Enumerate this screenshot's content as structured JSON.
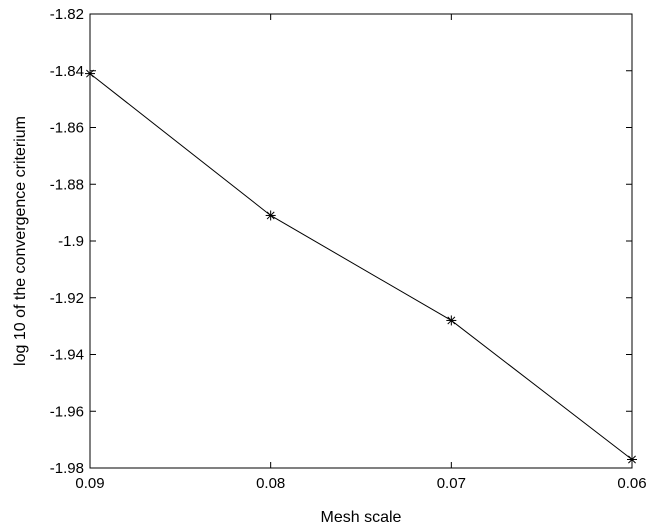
{
  "chart_data": {
    "type": "line",
    "title": "",
    "xlabel": "Mesh scale",
    "ylabel": "log 10 of the convergence criterium",
    "x_reversed": true,
    "xlim": [
      0.09,
      0.06
    ],
    "ylim": [
      -1.98,
      -1.82
    ],
    "grid": false,
    "x_ticks": [
      0.09,
      0.08,
      0.07,
      0.06
    ],
    "x_tick_labels": [
      "0.09",
      "0.08",
      "0.07",
      "0.06"
    ],
    "y_ticks": [
      -1.82,
      -1.84,
      -1.86,
      -1.88,
      -1.9,
      -1.92,
      -1.94,
      -1.96,
      -1.98
    ],
    "y_tick_labels": [
      "-1.82",
      "-1.84",
      "-1.86",
      "-1.88",
      "-1.9",
      "-1.92",
      "-1.94",
      "-1.96",
      "-1.98"
    ],
    "series": [
      {
        "x": [
          0.09,
          0.08,
          0.07,
          0.06
        ],
        "y": [
          -1.841,
          -1.891,
          -1.928,
          -1.977
        ],
        "marker": "asterisk",
        "color": "#000000"
      }
    ]
  }
}
